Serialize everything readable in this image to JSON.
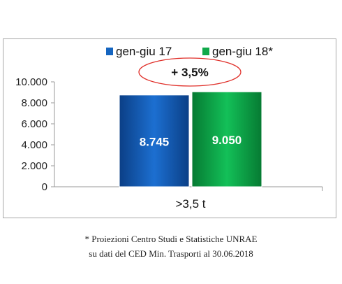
{
  "chart_data": {
    "type": "bar",
    "categories": [
      ">3,5 t"
    ],
    "series": [
      {
        "name": "gen-giu 17",
        "values": [
          8745
        ],
        "value_label": "8.745",
        "color": "#1565c0"
      },
      {
        "name": "gen-giu 18*",
        "values": [
          9050
        ],
        "value_label": "9.050",
        "color": "#10a94a"
      }
    ],
    "ylim": [
      0,
      10000
    ],
    "yticks": [
      0,
      2000,
      4000,
      6000,
      8000,
      10000
    ],
    "ytick_labels": [
      "0",
      "2.000",
      "4.000",
      "6.000",
      "8.000",
      "10.000"
    ],
    "annotation": "+ 3,5%",
    "annotation_color": "#e0302a",
    "legend_position": "top",
    "grid": false
  },
  "footnotes": [
    "* Proiezioni Centro Studi e Statistiche UNRAE",
    "su dati del CED Min. Trasporti al 30.06.2018"
  ]
}
